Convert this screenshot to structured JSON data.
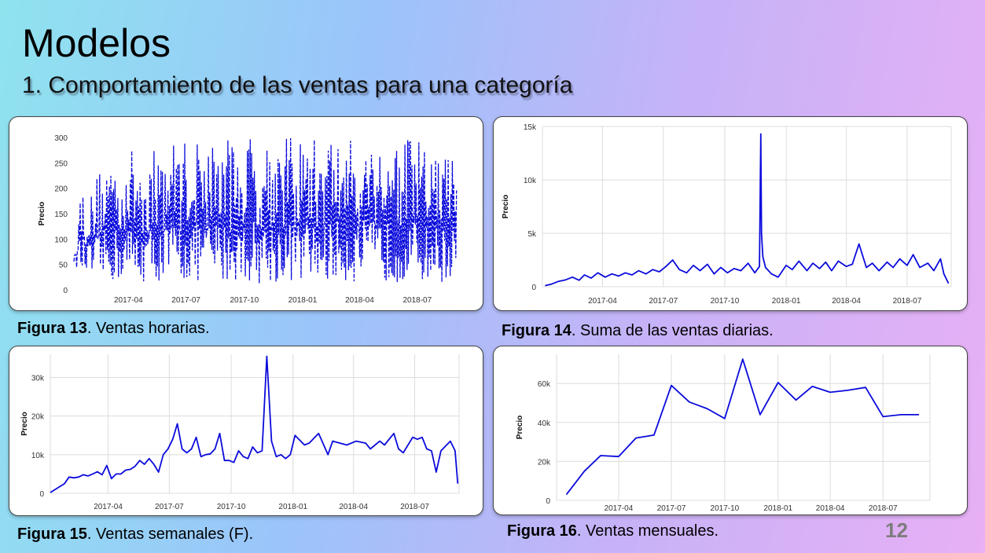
{
  "slide": {
    "title": "Modelos",
    "subtitle": "1. Comportamiento de las ventas para una  categoría",
    "page_number": "12"
  },
  "colors": {
    "line": "#0b0bdc",
    "grid": "#dcdcdc",
    "axis_text": "#333333"
  },
  "captions": [
    {
      "label": "Figura 13",
      "text": ". Ventas horarias."
    },
    {
      "label": "Figura 14",
      "text": ". Suma de las ventas diarias."
    },
    {
      "label": "Figura 15",
      "text": ". Ventas semanales (F)."
    },
    {
      "label": "Figura 16",
      "text": ". Ventas mensuales."
    }
  ],
  "chart_data": [
    {
      "id": "fig13",
      "type": "line",
      "title": "",
      "xlabel": "",
      "ylabel": "Precio",
      "ylim": [
        0,
        300
      ],
      "yticks": [
        0,
        50,
        100,
        150,
        200,
        250,
        300
      ],
      "ytick_labels": [
        "0",
        "50",
        "100",
        "150",
        "200",
        "250",
        "300"
      ],
      "xlim": [
        "2017-01-05",
        "2018-09-05"
      ],
      "xticks": [
        "2017-04-01",
        "2017-07-01",
        "2017-10-01",
        "2018-01-01",
        "2018-04-01",
        "2018-07-01"
      ],
      "xtick_labels": [
        "2017-04",
        "2017-07",
        "2017-10",
        "2018-01",
        "2018-04",
        "2018-07"
      ],
      "grid": false,
      "series": [
        {
          "style": "dashed",
          "note_values": "dense hourly values approx. 10–310",
          "x": [
            "2017-01-05",
            "2017-01-15",
            "2017-02-01",
            "2017-02-15",
            "2017-03-01",
            "2017-03-15",
            "2017-04-01",
            "2017-04-15",
            "2017-05-01",
            "2017-05-15",
            "2017-06-01",
            "2017-06-15",
            "2017-07-01",
            "2017-07-15",
            "2017-08-01",
            "2017-08-15",
            "2017-09-01",
            "2017-09-15",
            "2017-10-01",
            "2017-10-15",
            "2017-11-01",
            "2017-11-15",
            "2017-12-01",
            "2017-12-15",
            "2018-01-01",
            "2018-01-15",
            "2018-02-01",
            "2018-02-15",
            "2018-03-01",
            "2018-03-15",
            "2018-04-01",
            "2018-04-15",
            "2018-05-01",
            "2018-05-15",
            "2018-06-01",
            "2018-06-15",
            "2018-07-01",
            "2018-07-15",
            "2018-08-01",
            "2018-08-15",
            "2018-09-01"
          ],
          "y_max": [
            70,
            210,
            190,
            250,
            270,
            270,
            280,
            270,
            270,
            280,
            290,
            300,
            300,
            300,
            300,
            300,
            300,
            300,
            300,
            310,
            310,
            310,
            300,
            300,
            300,
            300,
            300,
            310,
            300,
            300,
            310,
            300,
            310,
            300,
            310,
            300,
            300,
            280,
            280,
            270,
            270
          ],
          "y_min": [
            55,
            30,
            20,
            15,
            15,
            15,
            15,
            15,
            15,
            15,
            15,
            15,
            15,
            15,
            15,
            15,
            15,
            15,
            15,
            15,
            10,
            10,
            15,
            15,
            15,
            15,
            15,
            15,
            15,
            15,
            15,
            15,
            15,
            15,
            15,
            15,
            15,
            15,
            15,
            15,
            20
          ]
        }
      ]
    },
    {
      "id": "fig14",
      "type": "line",
      "title": "",
      "xlabel": "",
      "ylabel": "Precio",
      "ylim": [
        0,
        15000
      ],
      "yticks": [
        0,
        5000,
        10000,
        15000
      ],
      "ytick_labels": [
        "0",
        "5k",
        "10k",
        "15k"
      ],
      "xlim": [
        "2017-01-01",
        "2018-09-05"
      ],
      "xticks": [
        "2017-04-01",
        "2017-07-01",
        "2017-10-01",
        "2018-01-01",
        "2018-04-01",
        "2018-07-01"
      ],
      "xtick_labels": [
        "2017-04",
        "2017-07",
        "2017-10",
        "2018-01",
        "2018-04",
        "2018-07"
      ],
      "grid": true,
      "series": [
        {
          "style": "solid",
          "x": [
            "2017-01-05",
            "2017-01-15",
            "2017-01-25",
            "2017-02-05",
            "2017-02-15",
            "2017-02-25",
            "2017-03-05",
            "2017-03-15",
            "2017-03-25",
            "2017-04-05",
            "2017-04-15",
            "2017-04-25",
            "2017-05-05",
            "2017-05-15",
            "2017-05-25",
            "2017-06-05",
            "2017-06-15",
            "2017-06-25",
            "2017-07-05",
            "2017-07-15",
            "2017-07-25",
            "2017-08-05",
            "2017-08-15",
            "2017-08-25",
            "2017-09-05",
            "2017-09-15",
            "2017-09-25",
            "2017-10-05",
            "2017-10-15",
            "2017-10-25",
            "2017-11-05",
            "2017-11-15",
            "2017-11-22",
            "2017-11-24",
            "2017-11-25",
            "2017-11-27",
            "2017-12-01",
            "2017-12-10",
            "2017-12-20",
            "2018-01-01",
            "2018-01-10",
            "2018-01-20",
            "2018-02-01",
            "2018-02-10",
            "2018-02-20",
            "2018-03-01",
            "2018-03-10",
            "2018-03-20",
            "2018-04-01",
            "2018-04-10",
            "2018-04-20",
            "2018-05-01",
            "2018-05-10",
            "2018-05-20",
            "2018-06-01",
            "2018-06-10",
            "2018-06-20",
            "2018-07-01",
            "2018-07-10",
            "2018-07-20",
            "2018-08-01",
            "2018-08-10",
            "2018-08-20",
            "2018-08-25",
            "2018-09-01"
          ],
          "y": [
            100,
            250,
            500,
            650,
            900,
            600,
            1100,
            800,
            1300,
            900,
            1200,
            1000,
            1300,
            1100,
            1500,
            1200,
            1600,
            1400,
            1900,
            2500,
            1600,
            1300,
            2000,
            1500,
            2100,
            1200,
            1800,
            1300,
            1700,
            1500,
            2200,
            1300,
            1900,
            14300,
            5000,
            2800,
            1800,
            1200,
            900,
            2000,
            1600,
            2400,
            1500,
            2200,
            1700,
            2300,
            1500,
            2400,
            1900,
            2100,
            4000,
            1800,
            2200,
            1500,
            2300,
            1800,
            2600,
            2000,
            3000,
            1800,
            2200,
            1500,
            2600,
            1200,
            300
          ]
        }
      ]
    },
    {
      "id": "fig15",
      "type": "line",
      "title": "",
      "xlabel": "",
      "ylabel": "Precio",
      "ylim": [
        0,
        36000
      ],
      "yticks": [
        0,
        10000,
        20000,
        30000
      ],
      "ytick_labels": [
        "0",
        "10k",
        "20k",
        "30k"
      ],
      "xlim": [
        "2017-01-05",
        "2018-09-05"
      ],
      "xticks": [
        "2017-04-01",
        "2017-07-01",
        "2017-10-01",
        "2018-01-01",
        "2018-04-01",
        "2018-07-01"
      ],
      "xtick_labels": [
        "2017-04",
        "2017-07",
        "2017-10",
        "2018-01",
        "2018-04",
        "2018-07"
      ],
      "grid": true,
      "series": [
        {
          "style": "solid",
          "x": [
            "2017-01-05",
            "2017-01-26",
            "2017-02-02",
            "2017-02-09",
            "2017-02-16",
            "2017-02-23",
            "2017-03-02",
            "2017-03-09",
            "2017-03-16",
            "2017-03-23",
            "2017-03-30",
            "2017-04-06",
            "2017-04-13",
            "2017-04-20",
            "2017-04-27",
            "2017-05-04",
            "2017-05-11",
            "2017-05-18",
            "2017-05-25",
            "2017-06-01",
            "2017-06-08",
            "2017-06-15",
            "2017-06-22",
            "2017-06-29",
            "2017-07-06",
            "2017-07-13",
            "2017-07-20",
            "2017-07-27",
            "2017-08-03",
            "2017-08-10",
            "2017-08-17",
            "2017-08-24",
            "2017-08-31",
            "2017-09-07",
            "2017-09-14",
            "2017-09-21",
            "2017-09-28",
            "2017-10-05",
            "2017-10-12",
            "2017-10-19",
            "2017-10-26",
            "2017-11-02",
            "2017-11-09",
            "2017-11-16",
            "2017-11-23",
            "2017-11-30",
            "2017-12-07",
            "2017-12-14",
            "2017-12-21",
            "2017-12-28",
            "2018-01-04",
            "2018-01-18",
            "2018-01-25",
            "2018-02-08",
            "2018-02-22",
            "2018-03-01",
            "2018-03-22",
            "2018-04-05",
            "2018-04-19",
            "2018-04-26",
            "2018-05-10",
            "2018-05-17",
            "2018-05-31",
            "2018-06-07",
            "2018-06-14",
            "2018-06-28",
            "2018-07-05",
            "2018-07-12",
            "2018-07-19",
            "2018-07-26",
            "2018-08-02",
            "2018-08-09",
            "2018-08-23",
            "2018-08-30",
            "2018-09-03"
          ],
          "y": [
            200,
            2500,
            4200,
            4000,
            4200,
            4800,
            4500,
            5000,
            5600,
            4800,
            7200,
            3800,
            5000,
            5000,
            6000,
            6200,
            7000,
            8500,
            7500,
            9000,
            7500,
            5500,
            10000,
            11500,
            14000,
            18000,
            11500,
            10500,
            11500,
            14500,
            9500,
            10000,
            10200,
            11500,
            15500,
            8500,
            8500,
            8000,
            11000,
            9500,
            9000,
            12000,
            10500,
            11000,
            35500,
            13500,
            9500,
            10000,
            9000,
            10000,
            15000,
            12500,
            13000,
            15500,
            10000,
            13500,
            12500,
            13500,
            13000,
            11500,
            13500,
            12500,
            15500,
            11500,
            10500,
            14500,
            14000,
            14500,
            11500,
            11000,
            5500,
            11000,
            13500,
            11000,
            2500
          ]
        }
      ]
    },
    {
      "id": "fig16",
      "type": "line",
      "title": "",
      "xlabel": "",
      "ylabel": "Precio",
      "ylim": [
        0,
        75000
      ],
      "yticks": [
        0,
        20000,
        40000,
        60000
      ],
      "ytick_labels": [
        "0",
        "20k",
        "40k",
        "60k"
      ],
      "xlim": [
        "2016-12-15",
        "2018-09-20"
      ],
      "xticks": [
        "2017-04-01",
        "2017-07-01",
        "2017-10-01",
        "2018-01-01",
        "2018-04-01",
        "2018-07-01"
      ],
      "xtick_labels": [
        "2017-04",
        "2017-07",
        "2017-10",
        "2018-01",
        "2018-04",
        "2018-07"
      ],
      "grid": true,
      "series": [
        {
          "style": "solid",
          "x": [
            "2017-01-01",
            "2017-02-01",
            "2017-03-01",
            "2017-04-01",
            "2017-05-01",
            "2017-06-01",
            "2017-07-01",
            "2017-08-01",
            "2017-09-01",
            "2017-10-01",
            "2017-11-01",
            "2017-12-01",
            "2018-01-01",
            "2018-02-01",
            "2018-03-01",
            "2018-04-01",
            "2018-05-01",
            "2018-06-01",
            "2018-07-01",
            "2018-08-01",
            "2018-09-01"
          ],
          "y": [
            3000,
            15000,
            23000,
            22500,
            32000,
            33500,
            59000,
            50500,
            47000,
            42000,
            72500,
            44000,
            60500,
            51500,
            58500,
            55500,
            56500,
            58000,
            43000,
            44000,
            44000
          ]
        }
      ]
    }
  ]
}
